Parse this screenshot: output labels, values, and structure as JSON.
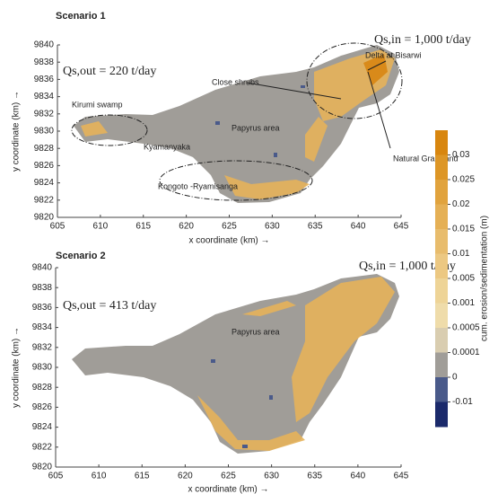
{
  "panels": [
    {
      "title": "Scenario 1",
      "xlabel": "x coordinate (km) →",
      "ylabel": "y coordinate (km) →",
      "xlim": [
        605,
        645
      ],
      "xticks": [
        605,
        610,
        615,
        620,
        625,
        630,
        635,
        640,
        645
      ],
      "ylim": [
        9820,
        9840
      ],
      "yticks": [
        9820,
        9822,
        9824,
        9826,
        9828,
        9830,
        9832,
        9834,
        9836,
        9838,
        9840
      ],
      "annotations": [
        "Qs,in = 1,000 t/day",
        "Qs,out = 220 t/day",
        "Delta at Bisarwi",
        "Close shrubs",
        "Kirumi swamp",
        "Papyrus area",
        "Kyamanyaka",
        "Natural Grassland",
        "Kongoto -Ryamisanga"
      ]
    },
    {
      "title": "Scenario 2",
      "xlabel": "x coordinate (km) →",
      "ylabel": "y coordinate (km) →",
      "xlim": [
        605,
        645
      ],
      "xticks": [
        605,
        610,
        615,
        620,
        625,
        630,
        635,
        640,
        645
      ],
      "ylim": [
        9820,
        9840
      ],
      "yticks": [
        9820,
        9822,
        9824,
        9826,
        9828,
        9830,
        9832,
        9834,
        9836,
        9838,
        9840
      ],
      "annotations": [
        "Qs,in = 1,000 t/day",
        "Qs,out = 413 t/day",
        "Papyrus area"
      ]
    }
  ],
  "colorbar": {
    "label": "cum. erosion/sedimentation (m)",
    "ticks": [
      0.03,
      0.025,
      0.02,
      0.015,
      0.01,
      0.005,
      0.001,
      0.0005,
      0.0001,
      0,
      -0.01
    ],
    "colors": [
      "#d8860f",
      "#dd9626",
      "#e1a33d",
      "#e5b055",
      "#e8bc6c",
      "#ecc882",
      "#eed497",
      "#efdcaa",
      "#d9cdb0",
      "#a09d98",
      "#4a5a8a",
      "#1b2a6b"
    ]
  }
}
